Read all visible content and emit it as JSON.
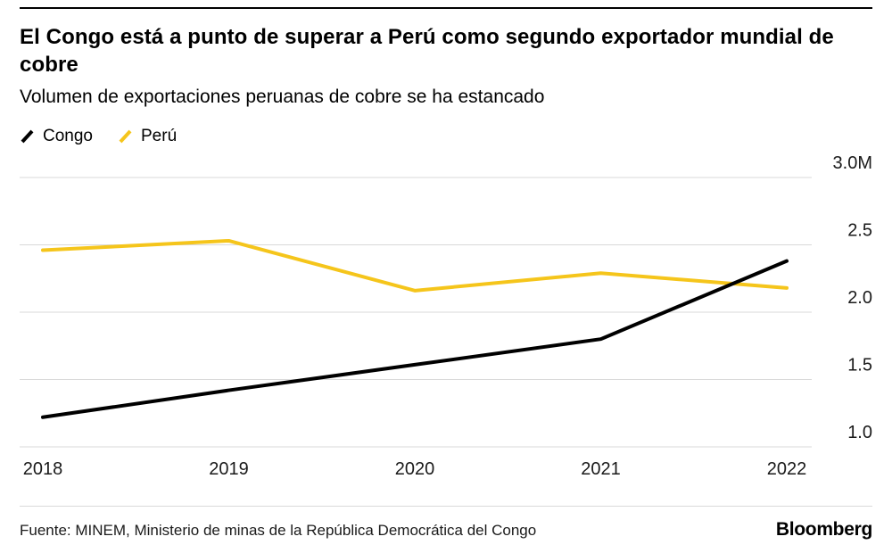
{
  "header": {
    "title": "El Congo está a punto de superar a Perú como segundo exportador mundial de cobre",
    "subtitle": "Volumen de exportaciones peruanas de cobre se ha estancado"
  },
  "chart_data": {
    "type": "line",
    "x": [
      "2018",
      "2019",
      "2020",
      "2021",
      "2022"
    ],
    "series": [
      {
        "name": "Congo",
        "color": "#000000",
        "values": [
          1.22,
          1.42,
          1.61,
          1.8,
          2.38
        ]
      },
      {
        "name": "Perú",
        "color": "#f5c51b",
        "values": [
          2.46,
          2.53,
          2.16,
          2.29,
          2.18
        ]
      }
    ],
    "ylim": [
      1.0,
      3.0
    ],
    "yticks": [
      {
        "value": 1.0,
        "label": "1.0"
      },
      {
        "value": 1.5,
        "label": "1.5"
      },
      {
        "value": 2.0,
        "label": "2.0"
      },
      {
        "value": 2.5,
        "label": "2.5"
      },
      {
        "value": 3.0,
        "label": "3.0M"
      }
    ],
    "grid": "horizontal",
    "legend_position": "top-left",
    "gridline_color": "#d9d9d9",
    "tick_color": "#1a1a1a"
  },
  "footer": {
    "source": "Fuente: MINEM, Ministerio de minas de la República Democrática del Congo",
    "brand": "Bloomberg"
  }
}
